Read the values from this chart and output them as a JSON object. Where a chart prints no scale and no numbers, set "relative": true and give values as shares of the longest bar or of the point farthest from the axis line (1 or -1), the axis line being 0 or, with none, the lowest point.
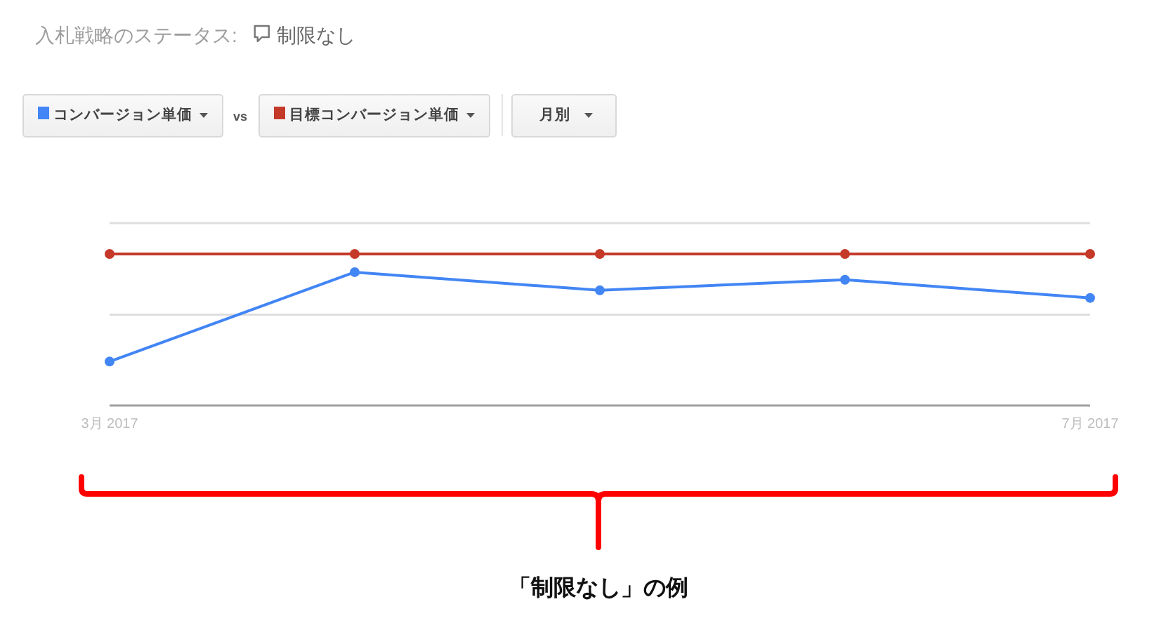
{
  "chart_data": {
    "type": "line",
    "title": "入札戦略のステータス:",
    "subtitle": "制限なし",
    "categories": [
      "3月 2017",
      null,
      null,
      null,
      "7月 2017"
    ],
    "relative": true,
    "series": [
      {
        "name": "コンバージョン単価",
        "color": "#4285f4",
        "values": [
          0.29,
          0.88,
          0.76,
          0.83,
          0.71
        ]
      },
      {
        "name": "目標コンバージョン単価",
        "color": "#c53929",
        "values": [
          1,
          1,
          1,
          1,
          1
        ]
      }
    ],
    "ref_lines": [
      {
        "axis": "y",
        "value": 0.6,
        "color": "#dedede"
      }
    ],
    "legend": "top left",
    "marker": "circle",
    "line_style": "solid",
    "annotations": [
      "vs",
      "月別",
      "「制限なし」の例"
    ]
  }
}
